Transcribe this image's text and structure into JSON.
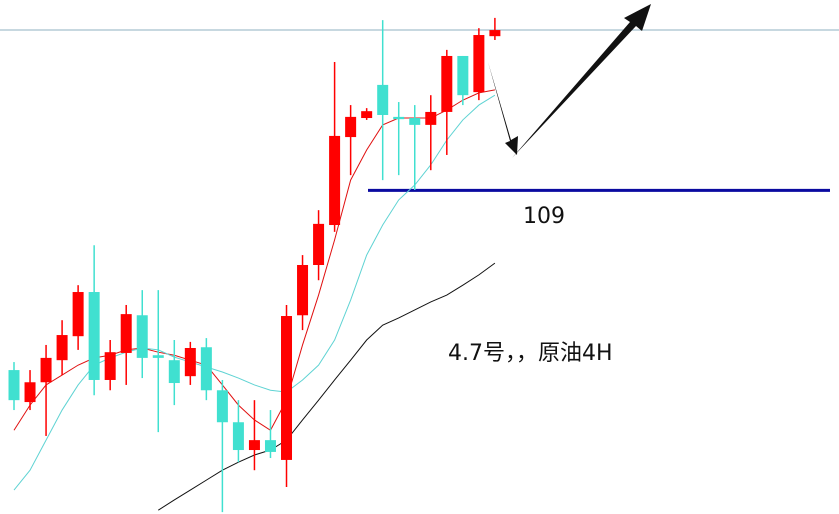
{
  "chart_data": {
    "type": "candlestick",
    "annotation": "4.7号，，原油4H",
    "level": 109,
    "level_color": "#0a0aa0",
    "up_color": "#ff0000",
    "down_color": "#40e0d0",
    "ylim": [
      100.5,
      114
    ],
    "open": [
      104.28,
      103.44,
      103.96,
      104.54,
      105.17,
      106.33,
      104.02,
      104.73,
      105.72,
      104.67,
      104.54,
      104.12,
      104.88,
      103.75,
      102.91,
      102.18,
      102.44,
      101.92,
      105.72,
      107.04,
      108.09,
      110.4,
      110.9,
      111.77,
      110.93,
      110.9,
      110.72,
      111.06,
      112.53,
      111.58,
      113.05
    ],
    "high": [
      104.49,
      104.28,
      104.94,
      105.59,
      106.51,
      107.56,
      105.07,
      105.99,
      106.38,
      106.38,
      105.07,
      105.02,
      105.12,
      104.02,
      103.49,
      103.49,
      103.23,
      105.99,
      107.3,
      108.48,
      112.37,
      111.24,
      111.16,
      113.47,
      111.32,
      111.24,
      111.5,
      112.69,
      112.53,
      113.26,
      113.53
    ],
    "low": [
      103.23,
      103.23,
      102.55,
      104.15,
      104.81,
      103.62,
      103.75,
      103.89,
      104.07,
      102.65,
      103.36,
      103.89,
      103.49,
      100.55,
      101.86,
      101.65,
      101.97,
      101.21,
      105.33,
      106.64,
      107.91,
      109.4,
      110.85,
      109.27,
      109.4,
      109.01,
      109.53,
      109.93,
      111.24,
      111.37,
      112.95
    ],
    "close": [
      103.49,
      103.96,
      104.6,
      105.2,
      106.33,
      104.02,
      104.75,
      105.75,
      104.6,
      104.6,
      103.94,
      104.86,
      103.75,
      102.91,
      102.18,
      102.44,
      102.13,
      105.7,
      107.04,
      108.12,
      110.43,
      110.93,
      111.08,
      110.98,
      110.87,
      110.72,
      111.06,
      112.53,
      111.5,
      113.08,
      113.21
    ],
    "series": [
      {
        "color": "#e01010",
        "values": [
          102.7,
          103.36,
          103.89,
          104.15,
          104.41,
          104.6,
          104.67,
          104.81,
          104.86,
          104.75,
          104.67,
          104.54,
          104.41,
          103.89,
          103.36,
          102.97,
          102.7,
          103.49,
          104.94,
          106.25,
          107.7,
          109.27,
          110.06,
          110.72,
          110.9,
          110.9,
          110.9,
          111.11,
          111.37,
          111.56,
          111.64
        ]
      },
      {
        "color": "#5fd3d3",
        "values": [
          101.13,
          101.65,
          102.44,
          103.23,
          103.89,
          104.41,
          104.6,
          104.75,
          104.86,
          104.81,
          104.62,
          104.49,
          104.36,
          104.23,
          104.07,
          103.89,
          103.75,
          103.7,
          104.02,
          104.41,
          105.07,
          106.12,
          107.3,
          108.09,
          108.75,
          109.14,
          109.67,
          110.32,
          110.85,
          111.24,
          111.5
        ]
      },
      {
        "color": "#111111",
        "values": [
          null,
          null,
          null,
          null,
          null,
          null,
          null,
          null,
          null,
          100.6,
          100.87,
          101.13,
          101.39,
          101.65,
          101.86,
          102.05,
          102.18,
          102.44,
          102.97,
          103.49,
          104.02,
          104.54,
          105.07,
          105.46,
          105.65,
          105.86,
          106.07,
          106.25,
          106.51,
          106.78,
          107.09
        ]
      }
    ]
  }
}
